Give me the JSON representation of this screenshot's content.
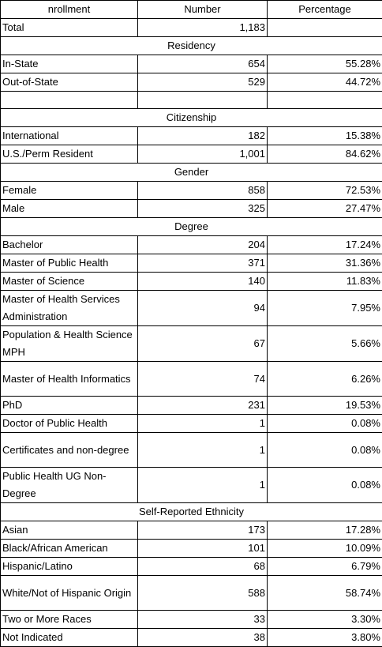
{
  "table": {
    "header": {
      "col1": "nrollment",
      "col2": "Number",
      "col3": "Percentage"
    },
    "total": {
      "label": "Total",
      "number": "1,183",
      "percentage": ""
    },
    "residency": {
      "title": "Residency",
      "rows": [
        {
          "label": "In-State",
          "number": "654",
          "percentage": "55.28%"
        },
        {
          "label": "Out-of-State",
          "number": "529",
          "percentage": "44.72%"
        }
      ]
    },
    "citizenship": {
      "title": "Citizenship",
      "rows": [
        {
          "label": "International",
          "number": "182",
          "percentage": "15.38%"
        },
        {
          "label": "U.S./Perm Resident",
          "number": "1,001",
          "percentage": "84.62%"
        }
      ]
    },
    "gender": {
      "title": "Gender",
      "rows": [
        {
          "label": "Female",
          "number": "858",
          "percentage": "72.53%"
        },
        {
          "label": "Male",
          "number": "325",
          "percentage": "27.47%"
        }
      ]
    },
    "degree": {
      "title": "Degree",
      "rows": [
        {
          "label": "Bachelor",
          "number": "204",
          "percentage": "17.24%"
        },
        {
          "label": "Master of Public Health",
          "number": "371",
          "percentage": "31.36%"
        },
        {
          "label": "Master of Science",
          "number": "140",
          "percentage": "11.83%"
        },
        {
          "label": "Master of Health Services Administration",
          "number": "94",
          "percentage": "7.95%"
        },
        {
          "label": "Population & Health Science MPH",
          "number": "67",
          "percentage": "5.66%"
        },
        {
          "label": "Master of Health Informatics",
          "number": "74",
          "percentage": "6.26%"
        },
        {
          "label": "PhD",
          "number": "231",
          "percentage": "19.53%"
        },
        {
          "label": "Doctor of Public Health",
          "number": "1",
          "percentage": "0.08%"
        },
        {
          "label": "Certificates and non-degree",
          "number": "1",
          "percentage": "0.08%"
        },
        {
          "label": "Public Health UG Non-Degree",
          "number": "1",
          "percentage": "0.08%"
        }
      ]
    },
    "ethnicity": {
      "title": "Self-Reported Ethnicity",
      "rows": [
        {
          "label": "Asian",
          "number": "173",
          "percentage": "17.28%"
        },
        {
          "label": "Black/African American",
          "number": "101",
          "percentage": "10.09%"
        },
        {
          "label": "Hispanic/Latino",
          "number": "68",
          "percentage": "6.79%"
        },
        {
          "label": "White/Not of Hispanic Origin",
          "number": "588",
          "percentage": "58.74%"
        },
        {
          "label": "Two or More Races",
          "number": "33",
          "percentage": "3.30%"
        },
        {
          "label": "Not Indicated",
          "number": "38",
          "percentage": "3.80%"
        }
      ]
    }
  }
}
